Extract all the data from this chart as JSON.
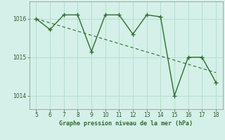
{
  "x": [
    5,
    6,
    7,
    8,
    9,
    10,
    11,
    12,
    13,
    14,
    15,
    16,
    17,
    18
  ],
  "y": [
    1016.0,
    1015.72,
    1016.1,
    1016.1,
    1015.15,
    1016.1,
    1016.1,
    1015.6,
    1016.1,
    1016.05,
    1014.0,
    1015.0,
    1015.0,
    1014.35
  ],
  "trend_x": [
    5,
    18
  ],
  "trend_y": [
    1016.0,
    1014.6
  ],
  "line_color": "#2d6e2d",
  "trend_color": "#2d6e2d",
  "bg_color": "#d4f0e8",
  "grid_color": "#b8ddd0",
  "xlabel": "Graphe pression niveau de la mer (hPa)",
  "xlim": [
    4.5,
    18.5
  ],
  "ylim": [
    1013.65,
    1016.45
  ],
  "yticks": [
    1014,
    1015,
    1016
  ],
  "xticks": [
    5,
    6,
    7,
    8,
    9,
    10,
    11,
    12,
    13,
    14,
    15,
    16,
    17,
    18
  ]
}
